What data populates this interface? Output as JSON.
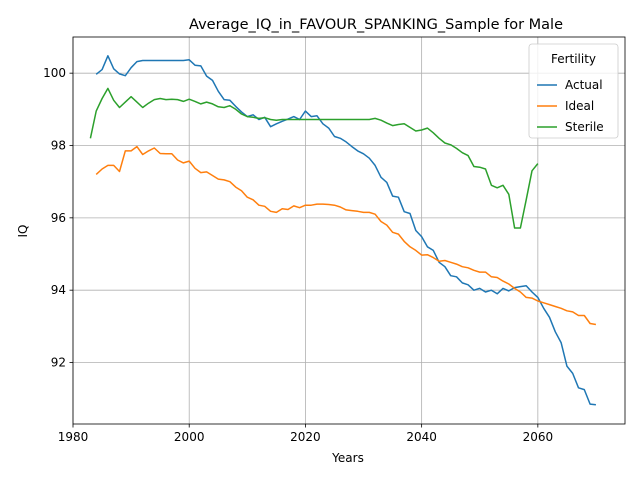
{
  "chart_data": {
    "type": "line",
    "title": "Average_IQ_in_FAVOUR_SPANKING_Sample for Male",
    "xlabel": "Years",
    "ylabel": "IQ",
    "xlim": [
      1980,
      2075
    ],
    "ylim": [
      90.3,
      101.0
    ],
    "xticks": [
      1980,
      2000,
      2020,
      2040,
      2060
    ],
    "yticks": [
      92,
      94,
      96,
      98,
      100
    ],
    "grid": true,
    "legend": {
      "title": "Fertility",
      "placement": "top-right"
    },
    "series": [
      {
        "name": "Actual",
        "color": "#1f77b4",
        "x": [
          1984,
          1985,
          1986,
          1987,
          1988,
          1989,
          1990,
          1991,
          1992,
          1993,
          1994,
          1995,
          1996,
          1997,
          1998,
          1999,
          2000,
          2001,
          2002,
          2003,
          2004,
          2005,
          2006,
          2007,
          2008,
          2009,
          2010,
          2011,
          2012,
          2013,
          2014,
          2015,
          2016,
          2017,
          2018,
          2019,
          2020,
          2021,
          2022,
          2023,
          2024,
          2025,
          2026,
          2027,
          2028,
          2029,
          2030,
          2031,
          2032,
          2033,
          2034,
          2035,
          2036,
          2037,
          2038,
          2039,
          2040,
          2041,
          2042,
          2043,
          2044,
          2045,
          2046,
          2047,
          2048,
          2049,
          2050,
          2051,
          2052,
          2053,
          2054,
          2055,
          2056,
          2057,
          2058,
          2059,
          2060,
          2061,
          2062,
          2063,
          2064,
          2065,
          2066,
          2067,
          2068,
          2069,
          2070
        ],
        "values": [
          99.97,
          100.1,
          100.48,
          100.12,
          99.98,
          99.93,
          100.15,
          100.32,
          100.35,
          100.35,
          100.35,
          100.35,
          100.35,
          100.35,
          100.35,
          100.35,
          100.37,
          100.22,
          100.2,
          99.92,
          99.8,
          99.5,
          99.27,
          99.25,
          99.08,
          98.93,
          98.8,
          98.85,
          98.72,
          98.78,
          98.52,
          98.6,
          98.67,
          98.73,
          98.8,
          98.72,
          98.95,
          98.8,
          98.82,
          98.6,
          98.48,
          98.25,
          98.2,
          98.1,
          97.97,
          97.85,
          97.77,
          97.65,
          97.45,
          97.12,
          96.98,
          96.6,
          96.57,
          96.17,
          96.12,
          95.65,
          95.48,
          95.2,
          95.1,
          94.77,
          94.65,
          94.4,
          94.37,
          94.2,
          94.15,
          94.0,
          94.05,
          93.95,
          94.0,
          93.9,
          94.05,
          93.98,
          94.07,
          94.1,
          94.12,
          93.95,
          93.8,
          93.5,
          93.25,
          92.85,
          92.55,
          91.9,
          91.7,
          91.3,
          91.25,
          90.85,
          90.83
        ]
      },
      {
        "name": "Ideal",
        "color": "#ff7f0e",
        "x": [
          1984,
          1985,
          1986,
          1987,
          1988,
          1989,
          1990,
          1991,
          1992,
          1993,
          1994,
          1995,
          1996,
          1997,
          1998,
          1999,
          2000,
          2001,
          2002,
          2003,
          2004,
          2005,
          2006,
          2007,
          2008,
          2009,
          2010,
          2011,
          2012,
          2013,
          2014,
          2015,
          2016,
          2017,
          2018,
          2019,
          2020,
          2021,
          2022,
          2023,
          2024,
          2025,
          2026,
          2027,
          2028,
          2029,
          2030,
          2031,
          2032,
          2033,
          2034,
          2035,
          2036,
          2037,
          2038,
          2039,
          2040,
          2041,
          2042,
          2043,
          2044,
          2045,
          2046,
          2047,
          2048,
          2049,
          2050,
          2051,
          2052,
          2053,
          2054,
          2055,
          2056,
          2057,
          2058,
          2059,
          2060,
          2061,
          2062,
          2063,
          2064,
          2065,
          2066,
          2067,
          2068,
          2069,
          2070
        ],
        "values": [
          97.2,
          97.35,
          97.45,
          97.45,
          97.28,
          97.85,
          97.85,
          97.97,
          97.75,
          97.85,
          97.93,
          97.78,
          97.77,
          97.77,
          97.6,
          97.52,
          97.57,
          97.37,
          97.25,
          97.27,
          97.17,
          97.07,
          97.05,
          97.0,
          96.85,
          96.75,
          96.57,
          96.5,
          96.35,
          96.32,
          96.18,
          96.15,
          96.25,
          96.23,
          96.33,
          96.28,
          96.35,
          96.35,
          96.38,
          96.38,
          96.37,
          96.35,
          96.3,
          96.22,
          96.2,
          96.18,
          96.15,
          96.15,
          96.1,
          95.9,
          95.8,
          95.6,
          95.55,
          95.35,
          95.2,
          95.1,
          94.97,
          94.98,
          94.9,
          94.8,
          94.82,
          94.77,
          94.72,
          94.65,
          94.62,
          94.55,
          94.5,
          94.5,
          94.37,
          94.35,
          94.25,
          94.17,
          94.05,
          93.95,
          93.8,
          93.78,
          93.7,
          93.65,
          93.6,
          93.55,
          93.5,
          93.43,
          93.4,
          93.3,
          93.3,
          93.08,
          93.05
        ]
      },
      {
        "name": "Sterile",
        "color": "#2ca02c",
        "x": [
          1983,
          1984,
          1985,
          1986,
          1987,
          1988,
          1989,
          1990,
          1991,
          1992,
          1993,
          1994,
          1995,
          1996,
          1997,
          1998,
          1999,
          2000,
          2001,
          2002,
          2003,
          2004,
          2005,
          2006,
          2007,
          2008,
          2009,
          2010,
          2011,
          2012,
          2013,
          2014,
          2015,
          2016,
          2017,
          2018,
          2019,
          2020,
          2021,
          2022,
          2023,
          2024,
          2025,
          2026,
          2027,
          2028,
          2029,
          2030,
          2031,
          2032,
          2033,
          2034,
          2035,
          2036,
          2037,
          2038,
          2039,
          2040,
          2041,
          2042,
          2043,
          2044,
          2045,
          2046,
          2047,
          2048,
          2049,
          2050,
          2051,
          2052,
          2053,
          2054,
          2055,
          2056,
          2057,
          2058,
          2059,
          2060
        ],
        "values": [
          98.2,
          98.95,
          99.3,
          99.58,
          99.25,
          99.05,
          99.2,
          99.35,
          99.2,
          99.05,
          99.17,
          99.27,
          99.3,
          99.27,
          99.28,
          99.27,
          99.22,
          99.28,
          99.22,
          99.15,
          99.2,
          99.15,
          99.07,
          99.05,
          99.1,
          99.0,
          98.87,
          98.8,
          98.78,
          98.75,
          98.77,
          98.72,
          98.7,
          98.72,
          98.72,
          98.72,
          98.72,
          98.72,
          98.72,
          98.72,
          98.72,
          98.72,
          98.72,
          98.72,
          98.72,
          98.72,
          98.72,
          98.72,
          98.72,
          98.75,
          98.7,
          98.62,
          98.55,
          98.58,
          98.6,
          98.5,
          98.4,
          98.43,
          98.48,
          98.35,
          98.2,
          98.07,
          98.02,
          97.92,
          97.8,
          97.72,
          97.42,
          97.4,
          97.35,
          96.9,
          96.83,
          96.9,
          96.65,
          95.72,
          95.72,
          96.5,
          97.3,
          97.5
        ]
      }
    ]
  }
}
